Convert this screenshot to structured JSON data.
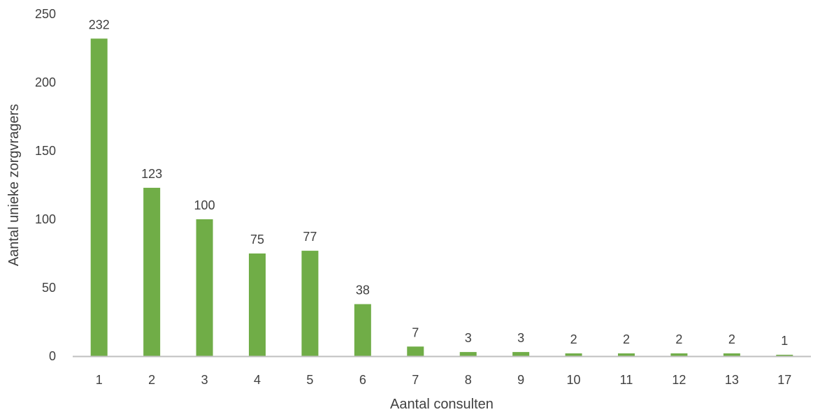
{
  "chart_data": {
    "type": "bar",
    "title": "",
    "xlabel": "Aantal consulten",
    "ylabel": "Aantal unieke zorgvragers",
    "categories": [
      "1",
      "2",
      "3",
      "4",
      "5",
      "6",
      "7",
      "8",
      "9",
      "10",
      "11",
      "12",
      "13",
      "17"
    ],
    "values": [
      232,
      123,
      100,
      75,
      77,
      38,
      7,
      3,
      3,
      2,
      2,
      2,
      2,
      1
    ],
    "ylim": [
      0,
      250
    ],
    "yticks": [
      0,
      50,
      100,
      150,
      200,
      250
    ],
    "grid": false,
    "legend": "none",
    "bar_color": "#70ad47",
    "axis_color": "#bfbfbf",
    "text_color": "#404040"
  }
}
